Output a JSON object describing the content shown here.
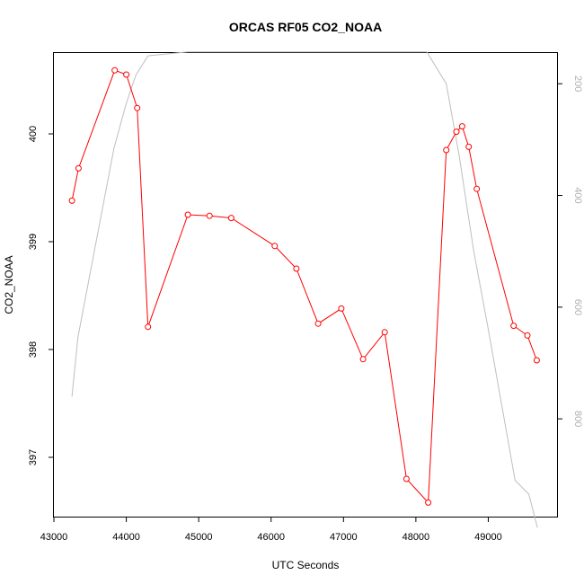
{
  "chart_data": {
    "type": "line",
    "title": "ORCAS RF05 CO2_NOAA",
    "xlabel": "UTC Seconds",
    "ylabel": "CO2_NOAA",
    "y2label": "",
    "xlim": [
      43000,
      49950
    ],
    "ylim": [
      396.45,
      400.75
    ],
    "y2lim": [
      975,
      145
    ],
    "y2_reversed": true,
    "x_ticks": [
      43000,
      44000,
      45000,
      46000,
      47000,
      48000,
      49000
    ],
    "y_ticks": [
      397,
      398,
      399,
      400
    ],
    "y2_ticks": [
      200,
      400,
      600,
      800
    ],
    "grid": false,
    "legend": "none",
    "colors": {
      "co2": "#ff0000",
      "pressure": "#bebebe",
      "axis": "#000000",
      "right_tick_labels": "#b0b0b0"
    },
    "series": [
      {
        "axis": "left",
        "style": "line+open-circles",
        "x": [
          43250,
          43340,
          43840,
          44000,
          44150,
          44300,
          44850,
          45150,
          45450,
          46050,
          46350,
          46650,
          46970,
          47270,
          47570,
          47870,
          48170,
          48420,
          48560,
          48640,
          48730,
          48840,
          49350,
          49540,
          49670
        ],
        "y": [
          399.38,
          399.68,
          400.59,
          400.55,
          400.24,
          398.21,
          399.25,
          399.24,
          399.22,
          398.96,
          398.75,
          398.24,
          398.38,
          397.91,
          398.16,
          396.8,
          396.58,
          399.85,
          400.02,
          400.07,
          399.88,
          399.49,
          398.22,
          398.13,
          397.9
        ]
      },
      {
        "axis": "right",
        "style": "line",
        "x": [
          43250,
          43330,
          43830,
          44000,
          44130,
          44300,
          44850,
          45500,
          46500,
          47500,
          48150,
          48420,
          48600,
          48800,
          49000,
          49370,
          49560,
          49680
        ],
        "y": [
          760,
          655,
          315,
          235,
          185,
          150,
          143,
          143,
          143,
          143,
          143,
          200,
          330,
          500,
          640,
          910,
          935,
          995
        ]
      }
    ]
  }
}
